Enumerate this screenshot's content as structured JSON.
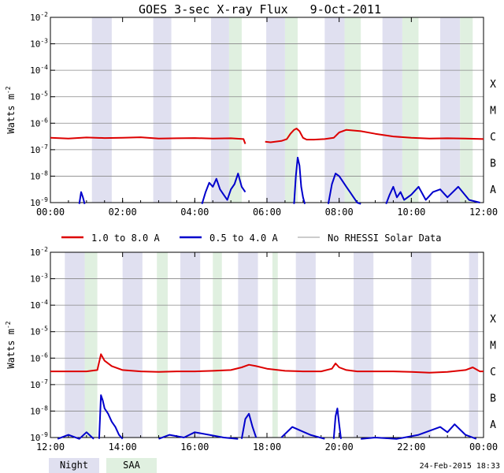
{
  "chart_data": {
    "type": "line",
    "title": "GOES 3-sec X-ray Flux",
    "date": "9-Oct-2011",
    "ylabel": "Watts m",
    "ylabel_exp": "-2",
    "ylim_exp": [
      -9,
      -2
    ],
    "y_tick_exponents": [
      -2,
      -3,
      -4,
      -5,
      -6,
      -7,
      -8,
      -9
    ],
    "y_tick_base": "10",
    "flare_classes": [
      {
        "label": "X",
        "exp": -4
      },
      {
        "label": "M",
        "exp": -5
      },
      {
        "label": "C",
        "exp": -6
      },
      {
        "label": "B",
        "exp": -7
      },
      {
        "label": "A",
        "exp": -8
      }
    ],
    "legend": {
      "series": [
        {
          "label": "1.0 to 8.0 A",
          "color": "#dd0000"
        },
        {
          "label": "0.5 to 4.0 A",
          "color": "#0000cc"
        },
        {
          "label": "No RHESSI Solar Data",
          "color": "#999999"
        }
      ],
      "bands": [
        {
          "label": "Night",
          "color": "#e0e0f0"
        },
        {
          "label": "SAA",
          "color": "#e0f0e0"
        }
      ]
    },
    "panels": [
      {
        "x_range_hours": [
          0,
          12
        ],
        "x_ticks": [
          "00:00",
          "02:00",
          "04:00",
          "06:00",
          "08:00",
          "10:00",
          "12:00"
        ],
        "night_hours": [
          [
            1.15,
            1.7
          ],
          [
            2.85,
            3.35
          ],
          [
            4.45,
            4.95
          ],
          [
            5.98,
            6.5
          ],
          [
            7.6,
            8.15
          ],
          [
            9.2,
            9.75
          ],
          [
            10.8,
            11.35
          ]
        ],
        "saa_hours": [
          [
            4.95,
            5.3
          ],
          [
            6.5,
            6.85
          ],
          [
            8.15,
            8.6
          ],
          [
            9.75,
            10.2
          ],
          [
            11.35,
            11.7
          ]
        ],
        "long_channel": {
          "segments": [
            {
              "hours": [
                0,
                0.5,
                1.0,
                1.5,
                2.0,
                2.5,
                3.0,
                3.5,
                4.0,
                4.5,
                5.0,
                5.35,
                5.4
              ],
              "log_flux": [
                -6.55,
                -6.58,
                -6.54,
                -6.56,
                -6.55,
                -6.53,
                -6.58,
                -6.57,
                -6.56,
                -6.58,
                -6.57,
                -6.6,
                -6.78
              ]
            },
            {
              "hours": [
                5.95,
                6.1,
                6.4,
                6.55,
                6.65,
                6.75,
                6.82,
                6.9,
                7.0,
                7.1,
                7.3,
                7.6,
                7.85,
                8.0,
                8.2,
                8.6,
                9.0,
                9.5,
                10.0,
                10.5,
                11.0,
                11.5,
                12.0
              ],
              "log_flux": [
                -6.7,
                -6.72,
                -6.67,
                -6.6,
                -6.4,
                -6.25,
                -6.2,
                -6.3,
                -6.55,
                -6.62,
                -6.62,
                -6.6,
                -6.55,
                -6.35,
                -6.25,
                -6.3,
                -6.4,
                -6.5,
                -6.55,
                -6.58,
                -6.57,
                -6.58,
                -6.6
              ]
            }
          ]
        },
        "short_channel": {
          "segments": [
            {
              "hours": [
                0.8,
                0.85,
                0.9,
                0.95
              ],
              "log_flux": [
                -9.5,
                -8.6,
                -8.8,
                -9.5
              ]
            },
            {
              "hours": [
                4.2,
                4.3,
                4.4,
                4.5,
                4.6,
                4.7,
                4.8,
                4.9,
                5.0,
                5.1,
                5.2,
                5.3,
                5.4
              ],
              "log_flux": [
                -9.4,
                -8.6,
                -8.25,
                -8.4,
                -8.1,
                -8.5,
                -8.7,
                -8.9,
                -8.5,
                -8.3,
                -7.9,
                -8.4,
                -8.6
              ]
            },
            {
              "hours": [
                6.75,
                6.8,
                6.85,
                6.9,
                6.95,
                7.0,
                7.05
              ],
              "log_flux": [
                -9.4,
                -8.0,
                -7.3,
                -7.6,
                -8.4,
                -8.8,
                -9.3
              ]
            },
            {
              "hours": [
                7.7,
                7.8,
                7.9,
                8.0,
                8.1,
                8.2,
                8.3,
                8.4,
                8.5,
                8.6
              ],
              "log_flux": [
                -9.4,
                -8.3,
                -7.9,
                -8.0,
                -8.2,
                -8.4,
                -8.6,
                -8.8,
                -9.0,
                -9.2
              ]
            },
            {
              "hours": [
                9.3,
                9.4,
                9.5,
                9.6,
                9.7,
                9.8,
                10.0,
                10.2,
                10.4,
                10.6,
                10.8,
                11.0,
                11.3,
                11.6,
                11.9
              ],
              "log_flux": [
                -9.1,
                -8.7,
                -8.4,
                -8.8,
                -8.6,
                -8.9,
                -8.7,
                -8.4,
                -8.9,
                -8.6,
                -8.5,
                -8.8,
                -8.4,
                -8.9,
                -9.0
              ]
            }
          ]
        }
      },
      {
        "x_range_hours": [
          12,
          24
        ],
        "x_ticks": [
          "12:00",
          "14:00",
          "16:00",
          "18:00",
          "20:00",
          "22:00",
          "00:00"
        ],
        "night_hours": [
          [
            12.4,
            12.95
          ],
          [
            14.0,
            14.55
          ],
          [
            15.6,
            16.15
          ],
          [
            17.2,
            17.75
          ],
          [
            18.8,
            19.35
          ],
          [
            20.4,
            20.95
          ],
          [
            22.0,
            22.55
          ],
          [
            23.6,
            23.85
          ]
        ],
        "saa_hours": [
          [
            12.95,
            13.3
          ],
          [
            14.95,
            15.25
          ],
          [
            16.5,
            16.75
          ],
          [
            18.15,
            18.3
          ]
        ],
        "long_channel": {
          "segments": [
            {
              "hours": [
                12.0,
                12.5,
                13.0,
                13.3,
                13.4,
                13.5,
                13.7,
                14.0,
                14.5,
                15.0,
                15.5,
                16.0,
                16.5,
                17.0,
                17.3,
                17.5,
                17.7,
                18.0,
                18.5,
                19.0,
                19.5,
                19.8,
                19.9,
                20.0,
                20.2,
                20.5,
                21.0,
                21.5,
                22.0,
                22.5,
                23.0,
                23.5,
                23.7,
                23.9,
                24.0
              ],
              "log_flux": [
                -6.5,
                -6.5,
                -6.5,
                -6.45,
                -5.85,
                -6.1,
                -6.3,
                -6.45,
                -6.5,
                -6.52,
                -6.5,
                -6.5,
                -6.48,
                -6.45,
                -6.35,
                -6.25,
                -6.3,
                -6.4,
                -6.48,
                -6.5,
                -6.5,
                -6.4,
                -6.2,
                -6.35,
                -6.45,
                -6.5,
                -6.5,
                -6.5,
                -6.52,
                -6.55,
                -6.52,
                -6.45,
                -6.35,
                -6.5,
                -6.5
              ]
            }
          ]
        },
        "short_channel": {
          "segments": [
            {
              "hours": [
                12.2,
                12.5,
                12.8,
                13.0,
                13.2
              ],
              "log_flux": [
                -9.2,
                -8.9,
                -9.1,
                -8.8,
                -9.2
              ]
            },
            {
              "hours": [
                13.35,
                13.4,
                13.45,
                13.5,
                13.6,
                13.7,
                13.8,
                13.9,
                14.0
              ],
              "log_flux": [
                -9.3,
                -7.4,
                -7.6,
                -7.9,
                -8.1,
                -8.4,
                -8.6,
                -8.9,
                -9.2
              ]
            },
            {
              "hours": [
                15.0,
                15.3,
                15.7,
                16.0,
                16.4,
                16.8,
                17.2
              ],
              "log_flux": [
                -9.2,
                -8.9,
                -9.0,
                -8.8,
                -8.9,
                -9.0,
                -9.1
              ]
            },
            {
              "hours": [
                17.3,
                17.4,
                17.5,
                17.6,
                17.7
              ],
              "log_flux": [
                -9.1,
                -8.3,
                -8.1,
                -8.6,
                -9.0
              ]
            },
            {
              "hours": [
                18.4,
                18.7,
                19.2,
                19.6
              ],
              "log_flux": [
                -9.0,
                -8.6,
                -8.9,
                -9.1
              ]
            },
            {
              "hours": [
                19.85,
                19.9,
                19.95,
                20.0,
                20.05
              ],
              "log_flux": [
                -9.3,
                -8.2,
                -7.9,
                -8.5,
                -9.2
              ]
            },
            {
              "hours": [
                20.6,
                21.0,
                21.6,
                22.2,
                22.8,
                23.0,
                23.2,
                23.5,
                23.8
              ],
              "log_flux": [
                -9.2,
                -9.0,
                -9.1,
                -8.9,
                -8.6,
                -8.8,
                -8.5,
                -8.9,
                -9.1
              ]
            }
          ]
        }
      }
    ],
    "footer_timestamp": "24-Feb-2015 18:33"
  }
}
